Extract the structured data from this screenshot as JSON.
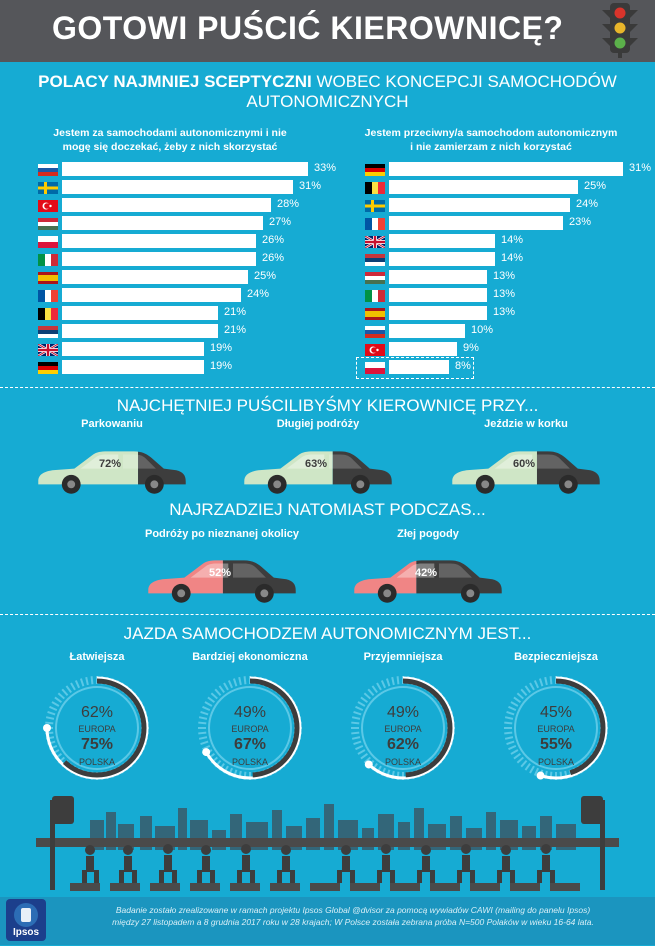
{
  "header": {
    "title": "GOTOWI PUŚCIĆ KIEROWNICĘ?"
  },
  "section1": {
    "title_bold": "POLACY NAJMNIEJ SCEPTYCZNI",
    "title_rest": " WOBEC KONCEPCJI SAMOCHODÓW",
    "title_line2": "AUTONOMICZNYCH",
    "left": {
      "title_line1": "Jestem za samochodami autonomicznymi i nie",
      "title_line2": "mogę się doczekać, żeby z nich skorzystać",
      "items": [
        {
          "country": "Rosja",
          "flag": "ru",
          "label": "33%",
          "value": 33
        },
        {
          "country": "Szwecja",
          "flag": "se",
          "label": "31%",
          "value": 31
        },
        {
          "country": "Turcja",
          "flag": "tr",
          "label": "28%",
          "value": 28
        },
        {
          "country": "Węgry",
          "flag": "hu",
          "label": "27%",
          "value": 27
        },
        {
          "country": "Polska",
          "flag": "pl",
          "label": "26%",
          "value": 26
        },
        {
          "country": "Włochy",
          "flag": "it",
          "label": "26%",
          "value": 26
        },
        {
          "country": "Hiszpania",
          "flag": "es",
          "label": "25%",
          "value": 25
        },
        {
          "country": "Francja",
          "flag": "fr",
          "label": "24%",
          "value": 24
        },
        {
          "country": "Belgia",
          "flag": "be",
          "label": "21%",
          "value": 21
        },
        {
          "country": "Serbia",
          "flag": "rs",
          "label": "21%",
          "value": 21
        },
        {
          "country": "Wielka Brytania",
          "flag": "gb",
          "label": "19%",
          "value": 19
        },
        {
          "country": "Niemcy",
          "flag": "de",
          "label": "19%",
          "value": 19
        }
      ]
    },
    "right": {
      "title_line1": "Jestem przeciwny/a samochodom autonomicznym",
      "title_line2": "i nie zamierzam z nich korzystać",
      "items": [
        {
          "country": "Niemcy",
          "flag": "de",
          "label": "31%",
          "value": 31
        },
        {
          "country": "Belgia",
          "flag": "be",
          "label": "25%",
          "value": 25
        },
        {
          "country": "Szwecja",
          "flag": "se",
          "label": "24%",
          "value": 24
        },
        {
          "country": "Francja",
          "flag": "fr",
          "label": "23%",
          "value": 23
        },
        {
          "country": "Wielka Brytania",
          "flag": "gb",
          "label": "14%",
          "value": 14
        },
        {
          "country": "Serbia",
          "flag": "rs",
          "label": "14%",
          "value": 14
        },
        {
          "country": "Węgry",
          "flag": "hu",
          "label": "13%",
          "value": 13
        },
        {
          "country": "Włochy",
          "flag": "it",
          "label": "13%",
          "value": 13
        },
        {
          "country": "Hiszpania",
          "flag": "es",
          "label": "13%",
          "value": 13
        },
        {
          "country": "Rosja",
          "flag": "ru",
          "label": "10%",
          "value": 10
        },
        {
          "country": "Turcja",
          "flag": "tr",
          "label": "9%",
          "value": 9
        },
        {
          "country": "Polska",
          "flag": "pl",
          "label": "8%",
          "value": 8
        }
      ]
    }
  },
  "section2": {
    "title": "NAJCHĘTNIEJ PUŚCILIBYŚMY KIEROWNICĘ PRZY...",
    "items": [
      {
        "label": "Parkowaniu",
        "pct_label": "72%",
        "value": 72
      },
      {
        "label": "Długiej podróży",
        "pct_label": "63%",
        "value": 63
      },
      {
        "label": "Jeździe w korku",
        "pct_label": "60%",
        "value": 60
      }
    ],
    "title2": "NAJRZADZIEJ NATOMIAST PODCZAS...",
    "items2": [
      {
        "label": "Podróży po nieznanej okolicy",
        "pct_label": "52%",
        "value": 52
      },
      {
        "label": "Złej pogody",
        "pct_label": "42%",
        "value": 42
      }
    ]
  },
  "section3": {
    "title": "JAZDA SAMOCHODZEM AUTONOMICZNYM JEST...",
    "items": [
      {
        "label": "Łatwiejsza",
        "europe_label": "62%",
        "europe_value": 62,
        "europe_text": "EUROPA",
        "poland_label": "75%",
        "poland_value": 75,
        "poland_text": "POLSKA"
      },
      {
        "label": "Bardziej ekonomiczna",
        "europe_label": "49%",
        "europe_value": 49,
        "europe_text": "EUROPA",
        "poland_label": "67%",
        "poland_value": 67,
        "poland_text": "POLSKA"
      },
      {
        "label": "Przyjemniejsza",
        "europe_label": "49%",
        "europe_value": 49,
        "europe_text": "EUROPA",
        "poland_label": "62%",
        "poland_value": 62,
        "poland_text": "POLSKA"
      },
      {
        "label": "Bezpieczniejsza",
        "europe_label": "45%",
        "europe_value": 45,
        "europe_text": "EUROPA",
        "poland_label": "55%",
        "poland_value": 55,
        "poland_text": "POLSKA"
      }
    ]
  },
  "footer": {
    "logo_text": "Ipsos",
    "note_line1": "Badanie zostało zrealizowane w ramach projektu Ipsos Global @dvisor za pomocą wywiadów CAWI (mailing do panelu Ipsos)",
    "note_line2": "między 27 listopadem a 8 grudnia 2017 roku w 28 krajach; W Polsce została zebrana próba N=500 Polaków w wieku 16-64 lata."
  },
  "colors": {
    "background": "#16abd3",
    "header": "#55565a",
    "car_green": "#cfe6c6",
    "car_red": "#f08585",
    "car_dark": "#3d3d3d",
    "ring_light": "#5bc8e6"
  }
}
